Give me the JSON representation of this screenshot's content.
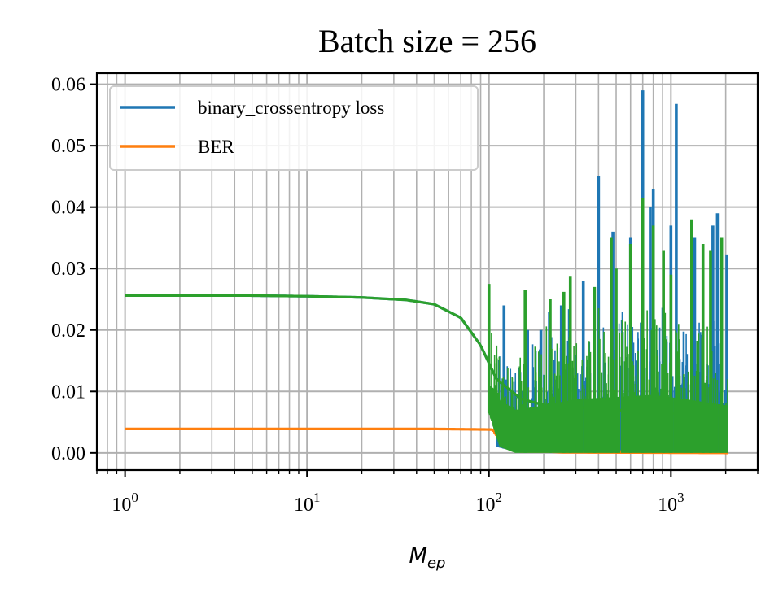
{
  "chart_data": {
    "type": "line",
    "title": "Batch size = 256",
    "xlabel": "M",
    "xlabel_subscript": "ep",
    "ylabel": "",
    "xscale": "log",
    "xlim": [
      0.7,
      3000
    ],
    "ylim": [
      -0.0028,
      0.0618
    ],
    "grid": true,
    "grid_minor_x": true,
    "legend_placement": "top-left",
    "y_ticks": [
      {
        "value": 0.0,
        "label": "0.00"
      },
      {
        "value": 0.01,
        "label": "0.01"
      },
      {
        "value": 0.02,
        "label": "0.02"
      },
      {
        "value": 0.03,
        "label": "0.03"
      },
      {
        "value": 0.04,
        "label": "0.04"
      },
      {
        "value": 0.05,
        "label": "0.05"
      },
      {
        "value": 0.06,
        "label": "0.06"
      }
    ],
    "x_ticks": [
      {
        "value": 1,
        "base": "10",
        "exp": "0"
      },
      {
        "value": 10,
        "base": "10",
        "exp": "1"
      },
      {
        "value": 100,
        "base": "10",
        "exp": "2"
      },
      {
        "value": 1000,
        "base": "10",
        "exp": "3"
      }
    ],
    "series": [
      {
        "name": "binary_crossentropy loss",
        "color": "#1f77b4",
        "in_legend": true,
        "points": [
          [
            1,
            0.0256
          ],
          [
            5,
            0.0256
          ],
          [
            10,
            0.0255
          ],
          [
            20,
            0.0253
          ],
          [
            35,
            0.0249
          ],
          [
            50,
            0.0242
          ],
          [
            70,
            0.022
          ],
          [
            90,
            0.0175
          ],
          [
            110,
            0.012
          ],
          [
            150,
            0.0087
          ],
          [
            200,
            0.0078
          ],
          [
            400,
            0.007
          ],
          [
            800,
            0.0065
          ],
          [
            2050,
            0.006
          ]
        ],
        "upper": [
          [
            110,
            0.018
          ],
          [
            150,
            0.018
          ],
          [
            200,
            0.02
          ],
          [
            300,
            0.025
          ],
          [
            500,
            0.025
          ],
          [
            800,
            0.025
          ],
          [
            1200,
            0.023
          ],
          [
            2050,
            0.023
          ]
        ],
        "lower": [
          [
            110,
            0.001
          ],
          [
            150,
            0.0
          ],
          [
            2050,
            0.0
          ]
        ],
        "spikes": [
          [
            121,
            0.024
          ],
          [
            163,
            0.02
          ],
          [
            193,
            0.02
          ],
          [
            215,
            0.023
          ],
          [
            250,
            0.024
          ],
          [
            330,
            0.028
          ],
          [
            400,
            0.045
          ],
          [
            480,
            0.036
          ],
          [
            600,
            0.035
          ],
          [
            700,
            0.059
          ],
          [
            770,
            0.04
          ],
          [
            800,
            0.043
          ],
          [
            1000,
            0.037
          ],
          [
            1070,
            0.0568
          ],
          [
            1350,
            0.035
          ],
          [
            1700,
            0.037
          ],
          [
            1800,
            0.039
          ],
          [
            2030,
            0.0323
          ]
        ]
      },
      {
        "name": "BER",
        "color": "#ff7f0e",
        "in_legend": true,
        "points": [
          [
            1,
            0.0039
          ],
          [
            10,
            0.0039
          ],
          [
            50,
            0.0039
          ],
          [
            105,
            0.0038
          ],
          [
            120,
            0.0025
          ],
          [
            140,
            0.0012
          ],
          [
            170,
            0.0004
          ],
          [
            250,
            0.0001
          ],
          [
            2050,
            0.0
          ]
        ],
        "upper": [
          [
            105,
            0.0038
          ],
          [
            125,
            0.004
          ],
          [
            145,
            0.0038
          ],
          [
            175,
            0.0015
          ],
          [
            220,
            0.0008
          ],
          [
            300,
            0.0006
          ],
          [
            2050,
            0.0005
          ]
        ],
        "lower": [
          [
            105,
            0.0035
          ],
          [
            120,
            0.0008
          ],
          [
            150,
            0.0
          ],
          [
            2050,
            0.0
          ]
        ],
        "spikes": []
      },
      {
        "name": "",
        "color": "#2ca02c",
        "in_legend": false,
        "points": [
          [
            1,
            0.0256
          ],
          [
            5,
            0.0256
          ],
          [
            10,
            0.0255
          ],
          [
            20,
            0.0253
          ],
          [
            35,
            0.0249
          ],
          [
            50,
            0.0242
          ],
          [
            70,
            0.022
          ],
          [
            90,
            0.0175
          ],
          [
            110,
            0.012
          ],
          [
            150,
            0.0088
          ],
          [
            200,
            0.0078
          ],
          [
            400,
            0.0072
          ],
          [
            800,
            0.0066
          ],
          [
            2050,
            0.006
          ]
        ],
        "upper": [
          [
            100,
            0.02
          ],
          [
            110,
            0.0232
          ],
          [
            140,
            0.02
          ],
          [
            200,
            0.022
          ],
          [
            300,
            0.025
          ],
          [
            500,
            0.026
          ],
          [
            800,
            0.027
          ],
          [
            1200,
            0.025
          ],
          [
            2050,
            0.022
          ]
        ],
        "lower": [
          [
            100,
            0.0065
          ],
          [
            115,
            0.001
          ],
          [
            140,
            0.0
          ],
          [
            2050,
            0.0
          ]
        ],
        "spikes": [
          [
            100,
            0.0275
          ],
          [
            158,
            0.0265
          ],
          [
            217,
            0.025
          ],
          [
            258,
            0.0262
          ],
          [
            280,
            0.0288
          ],
          [
            380,
            0.027
          ],
          [
            470,
            0.035
          ],
          [
            500,
            0.03
          ],
          [
            600,
            0.034
          ],
          [
            700,
            0.0415
          ],
          [
            800,
            0.037
          ],
          [
            910,
            0.033
          ],
          [
            1000,
            0.029
          ],
          [
            1300,
            0.038
          ],
          [
            1500,
            0.034
          ],
          [
            1650,
            0.033
          ],
          [
            1900,
            0.035
          ]
        ]
      }
    ]
  }
}
